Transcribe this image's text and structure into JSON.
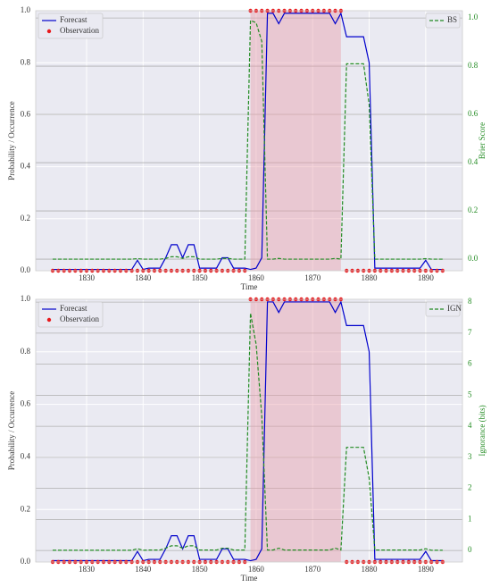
{
  "chart_data": [
    {
      "type": "line",
      "xlabel": "Time",
      "ylabel": "Probability / Occurrence",
      "y2label": "Brier Score",
      "x": [
        1824,
        1825,
        1826,
        1827,
        1828,
        1829,
        1830,
        1831,
        1832,
        1833,
        1834,
        1835,
        1836,
        1837,
        1838,
        1839,
        1840,
        1841,
        1842,
        1843,
        1844,
        1845,
        1846,
        1847,
        1848,
        1849,
        1850,
        1851,
        1852,
        1853,
        1854,
        1855,
        1856,
        1857,
        1858,
        1859,
        1860,
        1861,
        1862,
        1863,
        1864,
        1865,
        1866,
        1867,
        1868,
        1869,
        1870,
        1871,
        1872,
        1873,
        1874,
        1875,
        1876,
        1877,
        1878,
        1879,
        1880,
        1881,
        1882,
        1883,
        1884,
        1885,
        1886,
        1887,
        1888,
        1889,
        1890,
        1891,
        1892,
        1893
      ],
      "xlim": [
        1821,
        1896.5
      ],
      "xticks": [
        1830,
        1840,
        1850,
        1860,
        1870,
        1880,
        1890
      ],
      "ylim": [
        0,
        1
      ],
      "yticks": [
        {
          "value": 0,
          "label": "0.0"
        },
        {
          "value": 0.2,
          "label": "0.2"
        },
        {
          "value": 0.4,
          "label": "0.4"
        },
        {
          "value": 0.6,
          "label": "0.6"
        },
        {
          "value": 0.8,
          "label": "0.8"
        },
        {
          "value": 1,
          "label": "1.0"
        }
      ],
      "y2lim": [
        -0.048,
        1.03
      ],
      "y2ticks": [
        {
          "value": 0,
          "label": "0.0"
        },
        {
          "value": 0.2,
          "label": "0.2"
        },
        {
          "value": 0.4,
          "label": "0.4"
        },
        {
          "value": 0.6,
          "label": "0.6"
        },
        {
          "value": 0.8,
          "label": "0.8"
        },
        {
          "value": 1,
          "label": "1.0"
        }
      ],
      "shaded_span": [
        1859,
        1875
      ],
      "shade_color": "#e8a0ab",
      "legend": "upper left",
      "legend2": "upper right",
      "series": [
        {
          "name": "Forecast",
          "color": "#0000cc",
          "style": "solid",
          "values": [
            0.005,
            0.005,
            0.005,
            0.005,
            0.005,
            0.005,
            0.005,
            0.005,
            0.005,
            0.005,
            0.005,
            0.005,
            0.005,
            0.005,
            0.005,
            0.04,
            0.005,
            0.01,
            0.01,
            0.01,
            0.05,
            0.1,
            0.1,
            0.05,
            0.1,
            0.1,
            0.01,
            0.01,
            0.01,
            0.01,
            0.05,
            0.05,
            0.01,
            0.01,
            0.01,
            0.005,
            0.01,
            0.05,
            0.99,
            0.99,
            0.95,
            0.99,
            0.99,
            0.99,
            0.99,
            0.99,
            0.99,
            0.99,
            0.99,
            0.99,
            0.95,
            0.99,
            0.9,
            0.9,
            0.9,
            0.9,
            0.8,
            0.01,
            0.01,
            0.01,
            0.01,
            0.01,
            0.01,
            0.01,
            0.01,
            0.01,
            0.04,
            0.005,
            0.005,
            0.005
          ]
        },
        {
          "name": "Observation",
          "color": "#e8191c",
          "style": "dots",
          "values": [
            0,
            0,
            0,
            0,
            0,
            0,
            0,
            0,
            0,
            0,
            0,
            0,
            0,
            0,
            0,
            0,
            0,
            0,
            0,
            0,
            0,
            0,
            0,
            0,
            0,
            0,
            0,
            0,
            0,
            0,
            0,
            0,
            0,
            0,
            0,
            1,
            1,
            1,
            1,
            1,
            1,
            1,
            1,
            1,
            1,
            1,
            1,
            1,
            1,
            1,
            1,
            1,
            0,
            0,
            0,
            0,
            0,
            0,
            0,
            0,
            0,
            0,
            0,
            0,
            0,
            0,
            0,
            0,
            0,
            0
          ]
        },
        {
          "name": "BS",
          "color": "#228b22",
          "style": "dashed",
          "axis": "y2",
          "values": [
            0,
            0,
            0,
            0,
            0,
            0,
            0,
            0,
            0,
            0,
            0,
            0,
            0,
            0,
            0,
            0.002,
            0,
            0,
            0,
            0,
            0.003,
            0.01,
            0.01,
            0.003,
            0.01,
            0.01,
            0,
            0,
            0,
            0,
            0.003,
            0.003,
            0,
            0,
            0,
            0.99,
            0.98,
            0.903,
            0,
            0,
            0.003,
            0,
            0,
            0,
            0,
            0,
            0,
            0,
            0,
            0,
            0.003,
            0,
            0.81,
            0.81,
            0.81,
            0.81,
            0.64,
            0,
            0,
            0,
            0,
            0,
            0,
            0,
            0,
            0,
            0.002,
            0,
            0,
            0
          ]
        }
      ]
    },
    {
      "type": "line",
      "xlabel": "Time",
      "ylabel": "Probability / Occurrence",
      "y2label": "Ignorance (bits)",
      "x": [
        1824,
        1825,
        1826,
        1827,
        1828,
        1829,
        1830,
        1831,
        1832,
        1833,
        1834,
        1835,
        1836,
        1837,
        1838,
        1839,
        1840,
        1841,
        1842,
        1843,
        1844,
        1845,
        1846,
        1847,
        1848,
        1849,
        1850,
        1851,
        1852,
        1853,
        1854,
        1855,
        1856,
        1857,
        1858,
        1859,
        1860,
        1861,
        1862,
        1863,
        1864,
        1865,
        1866,
        1867,
        1868,
        1869,
        1870,
        1871,
        1872,
        1873,
        1874,
        1875,
        1876,
        1877,
        1878,
        1879,
        1880,
        1881,
        1882,
        1883,
        1884,
        1885,
        1886,
        1887,
        1888,
        1889,
        1890,
        1891,
        1892,
        1893
      ],
      "xlim": [
        1821,
        1896.5
      ],
      "xticks": [
        1830,
        1840,
        1850,
        1860,
        1870,
        1880,
        1890
      ],
      "ylim": [
        0,
        1
      ],
      "yticks": [
        {
          "value": 0,
          "label": "0.0"
        },
        {
          "value": 0.2,
          "label": "0.2"
        },
        {
          "value": 0.4,
          "label": "0.4"
        },
        {
          "value": 0.6,
          "label": "0.6"
        },
        {
          "value": 0.8,
          "label": "0.8"
        },
        {
          "value": 1,
          "label": "1.0"
        }
      ],
      "y2lim": [
        -0.37,
        8.09
      ],
      "y2ticks": [
        0,
        1,
        2,
        3,
        4,
        5,
        6,
        7,
        8
      ],
      "shaded_span": [
        1859,
        1875
      ],
      "shade_color": "#e8a0ab",
      "legend": "upper left",
      "legend2": "upper right",
      "series": [
        {
          "name": "Forecast",
          "color": "#0000cc",
          "style": "solid",
          "values": [
            0.005,
            0.005,
            0.005,
            0.005,
            0.005,
            0.005,
            0.005,
            0.005,
            0.005,
            0.005,
            0.005,
            0.005,
            0.005,
            0.005,
            0.005,
            0.04,
            0.005,
            0.01,
            0.01,
            0.01,
            0.05,
            0.1,
            0.1,
            0.05,
            0.1,
            0.1,
            0.01,
            0.01,
            0.01,
            0.01,
            0.05,
            0.05,
            0.01,
            0.01,
            0.01,
            0.005,
            0.01,
            0.05,
            0.99,
            0.99,
            0.95,
            0.99,
            0.99,
            0.99,
            0.99,
            0.99,
            0.99,
            0.99,
            0.99,
            0.99,
            0.95,
            0.99,
            0.9,
            0.9,
            0.9,
            0.9,
            0.8,
            0.01,
            0.01,
            0.01,
            0.01,
            0.01,
            0.01,
            0.01,
            0.01,
            0.01,
            0.04,
            0.005,
            0.005,
            0.005
          ]
        },
        {
          "name": "Observation",
          "color": "#e8191c",
          "style": "dots",
          "values": [
            0,
            0,
            0,
            0,
            0,
            0,
            0,
            0,
            0,
            0,
            0,
            0,
            0,
            0,
            0,
            0,
            0,
            0,
            0,
            0,
            0,
            0,
            0,
            0,
            0,
            0,
            0,
            0,
            0,
            0,
            0,
            0,
            0,
            0,
            0,
            1,
            1,
            1,
            1,
            1,
            1,
            1,
            1,
            1,
            1,
            1,
            1,
            1,
            1,
            1,
            1,
            1,
            0,
            0,
            0,
            0,
            0,
            0,
            0,
            0,
            0,
            0,
            0,
            0,
            0,
            0,
            0,
            0,
            0,
            0
          ]
        },
        {
          "name": "IGN",
          "color": "#228b22",
          "style": "dashed",
          "axis": "y2",
          "values": [
            0.007,
            0.007,
            0.007,
            0.007,
            0.007,
            0.007,
            0.007,
            0.007,
            0.007,
            0.007,
            0.007,
            0.007,
            0.007,
            0.007,
            0.007,
            0.059,
            0.007,
            0.015,
            0.015,
            0.015,
            0.074,
            0.152,
            0.152,
            0.074,
            0.152,
            0.152,
            0.015,
            0.015,
            0.015,
            0.015,
            0.074,
            0.074,
            0.015,
            0.015,
            0.015,
            7.644,
            6.644,
            4.322,
            0.015,
            0.015,
            0.074,
            0.015,
            0.015,
            0.015,
            0.015,
            0.015,
            0.015,
            0.015,
            0.015,
            0.015,
            0.074,
            0.015,
            3.322,
            3.322,
            3.322,
            3.322,
            2.322,
            0.015,
            0.015,
            0.015,
            0.015,
            0.015,
            0.015,
            0.015,
            0.015,
            0.015,
            0.059,
            0.007,
            0.007,
            0.007
          ]
        }
      ]
    }
  ]
}
